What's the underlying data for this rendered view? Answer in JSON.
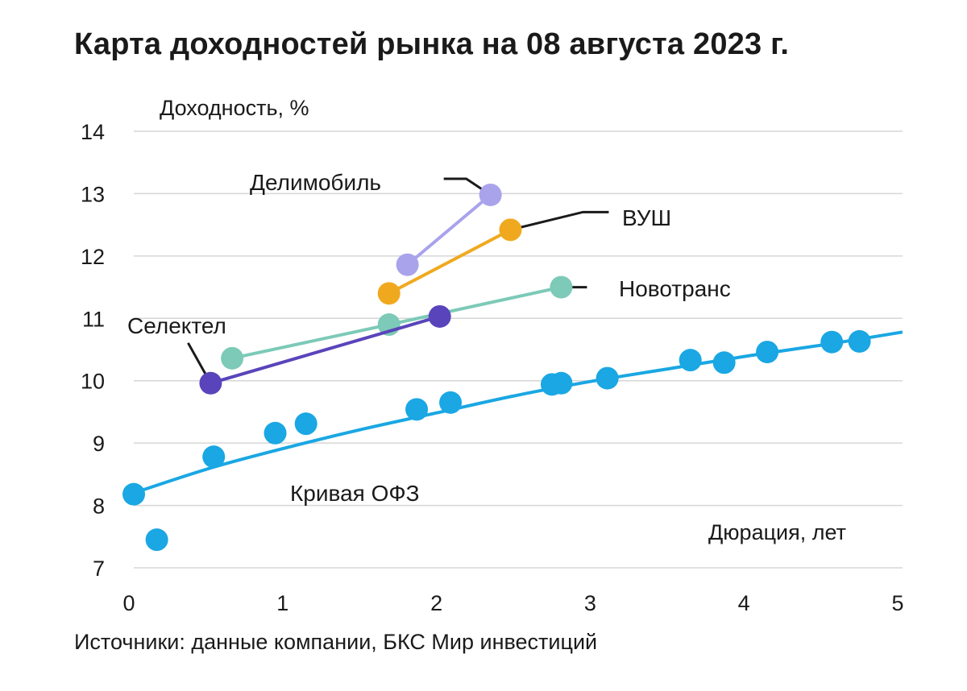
{
  "title": "Карта доходностей рынка на 08 августа 2023 г.",
  "source": "Источники: данные компании, БКС Мир инвестиций",
  "chart_data": {
    "type": "scatter",
    "ylabel": "Доходность, %",
    "xlabel": "Дюрация, лет",
    "xlim": [
      0,
      5
    ],
    "ylim": [
      7,
      14
    ],
    "x_ticks": [
      0,
      1,
      2,
      3,
      4,
      5
    ],
    "y_ticks": [
      7,
      8,
      9,
      10,
      11,
      12,
      13,
      14
    ],
    "x_tick_labels": [
      "0",
      "1",
      "2",
      "3",
      "4",
      "5"
    ],
    "y_tick_labels": [
      "7",
      "8",
      "9",
      "10",
      "11",
      "12",
      "13",
      "14"
    ],
    "grid": "horizontal",
    "ofz_curve_label": "Кривая ОФЗ",
    "ofz_curve": {
      "color": "#1aa7e3",
      "x": [
        0,
        0.5,
        1,
        1.5,
        2,
        2.5,
        3,
        3.5,
        4,
        4.5,
        5
      ],
      "y": [
        8.2,
        8.6,
        8.93,
        9.23,
        9.5,
        9.77,
        10.0,
        10.2,
        10.4,
        10.58,
        10.78
      ]
    },
    "series": [
      {
        "name": "Кривая ОФЗ",
        "color": "#1aa7e3",
        "connected": false,
        "points": [
          {
            "x": 0.0,
            "y": 8.18
          },
          {
            "x": 0.15,
            "y": 7.45
          },
          {
            "x": 0.52,
            "y": 8.78
          },
          {
            "x": 0.92,
            "y": 9.16
          },
          {
            "x": 1.12,
            "y": 9.31
          },
          {
            "x": 1.84,
            "y": 9.54
          },
          {
            "x": 2.06,
            "y": 9.65
          },
          {
            "x": 2.72,
            "y": 9.94
          },
          {
            "x": 2.78,
            "y": 9.96
          },
          {
            "x": 3.08,
            "y": 10.04
          },
          {
            "x": 3.62,
            "y": 10.33
          },
          {
            "x": 3.84,
            "y": 10.29
          },
          {
            "x": 4.12,
            "y": 10.46
          },
          {
            "x": 4.54,
            "y": 10.62
          },
          {
            "x": 4.72,
            "y": 10.63
          }
        ]
      },
      {
        "name": "Делимобиль",
        "color": "#a9a3ec",
        "connected": true,
        "points": [
          {
            "x": 1.78,
            "y": 11.86
          },
          {
            "x": 2.32,
            "y": 12.98
          }
        ]
      },
      {
        "name": "ВУШ",
        "color": "#f0a91f",
        "connected": true,
        "points": [
          {
            "x": 1.66,
            "y": 11.4
          },
          {
            "x": 2.45,
            "y": 12.42
          }
        ]
      },
      {
        "name": "Новотранс",
        "color": "#7ccab7",
        "connected": true,
        "points": [
          {
            "x": 0.64,
            "y": 10.36
          },
          {
            "x": 1.66,
            "y": 10.9
          },
          {
            "x": 2.78,
            "y": 11.5
          }
        ]
      },
      {
        "name": "Селектел",
        "color": "#5a44bb",
        "connected": true,
        "points": [
          {
            "x": 0.5,
            "y": 9.96
          },
          {
            "x": 1.99,
            "y": 11.03
          }
        ]
      }
    ],
    "annotations": [
      {
        "text": "Делимобиль",
        "series": "Делимобиль"
      },
      {
        "text": "ВУШ",
        "series": "ВУШ"
      },
      {
        "text": "Новотранс",
        "series": "Новотранс"
      },
      {
        "text": "Селектел",
        "series": "Селектел"
      }
    ]
  }
}
